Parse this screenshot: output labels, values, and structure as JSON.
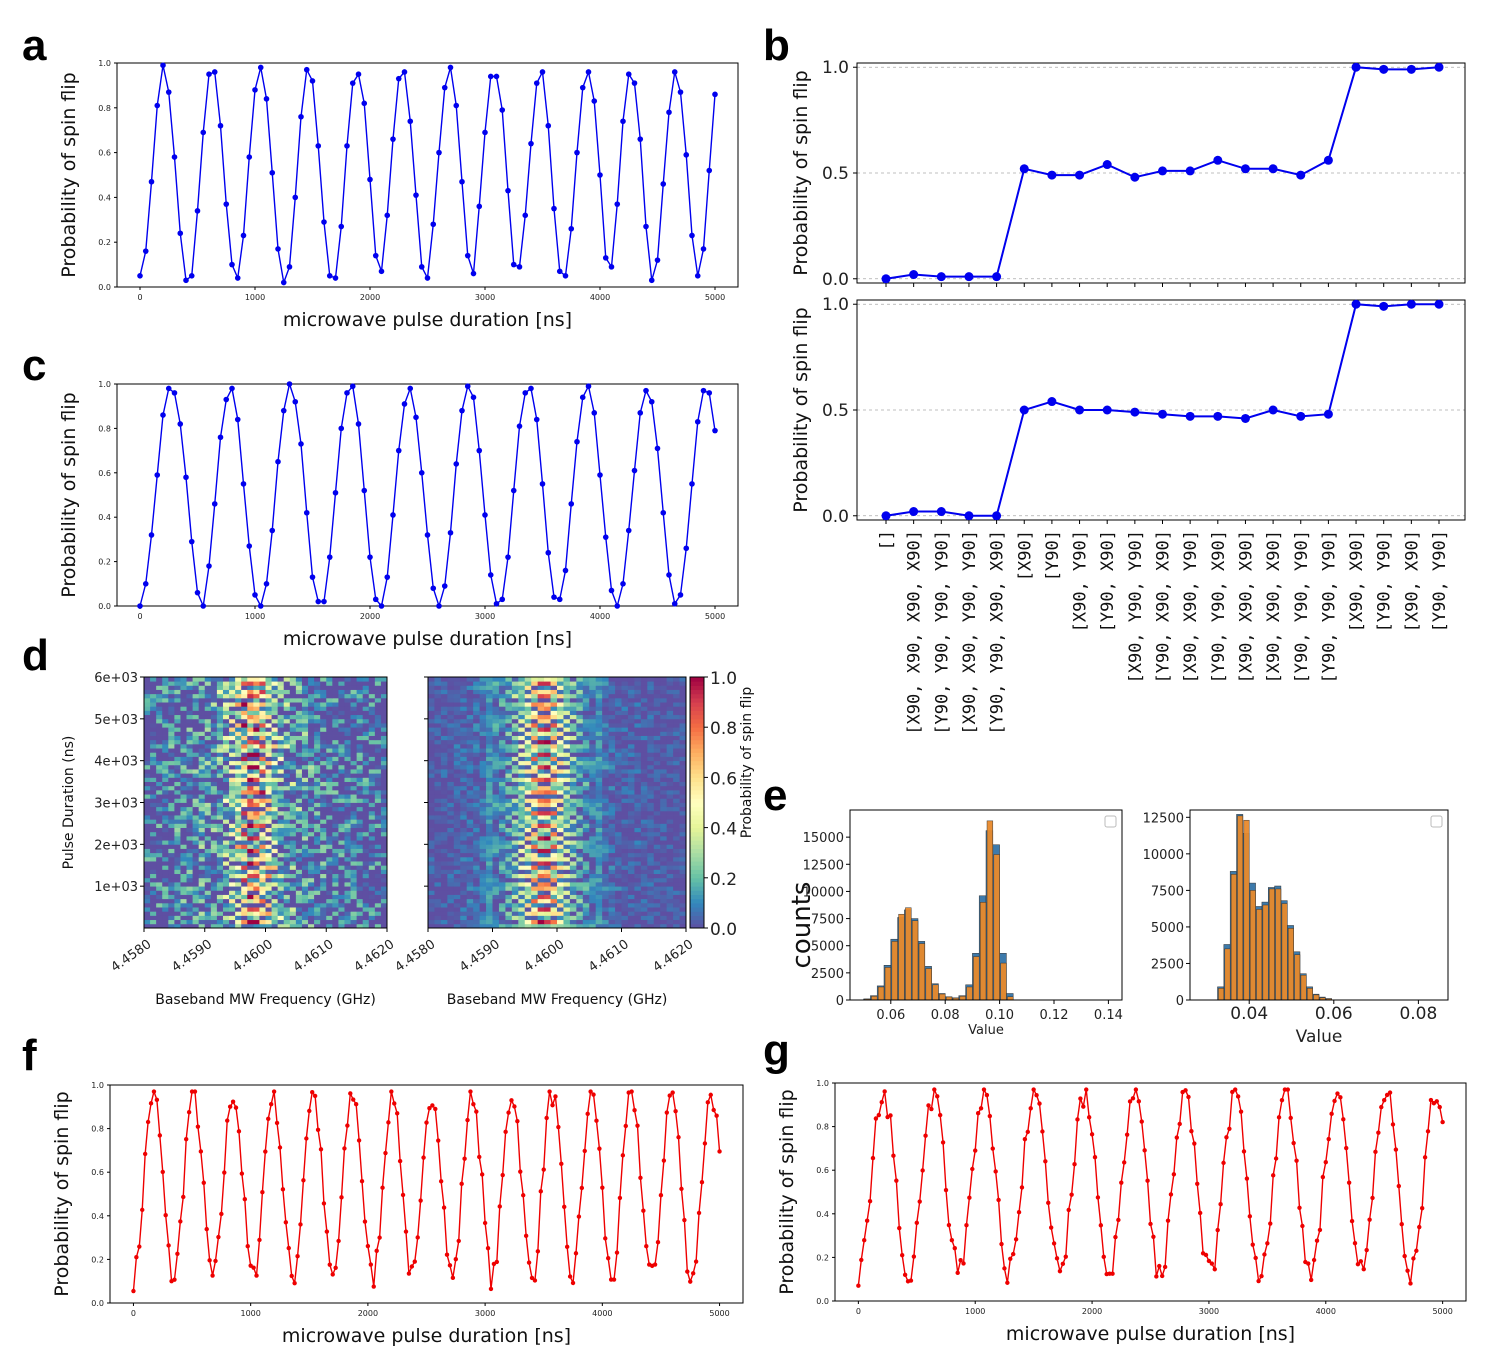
{
  "panel_letters": {
    "a": "a",
    "b": "b",
    "c": "c",
    "d": "d",
    "e": "e",
    "f": "f",
    "g": "g"
  },
  "colors": {
    "blue": "#0000ee",
    "red": "#ee0000",
    "hist_blue": "#3d7aab",
    "hist_orange": "#e88a2c"
  },
  "chart_data": [
    {
      "id": "a",
      "type": "line",
      "xlabel": "microwave pulse duration [ns]",
      "ylabel": "Probability of spin flip",
      "xlim": [
        -200,
        5200
      ],
      "ylim": [
        0,
        1
      ],
      "xticks": [
        "0",
        "1000",
        "2000",
        "3000",
        "4000",
        "5000"
      ],
      "yticks": [
        "0.0",
        "0.2",
        "0.4",
        "0.6",
        "0.8",
        "1.0"
      ],
      "series": [
        {
          "color": "blue",
          "x_start": 0,
          "x_step": 50,
          "values": [
            0.05,
            0.16,
            0.47,
            0.81,
            0.99,
            0.87,
            0.58,
            0.24,
            0.03,
            0.05,
            0.34,
            0.69,
            0.95,
            0.96,
            0.72,
            0.37,
            0.1,
            0.04,
            0.23,
            0.58,
            0.88,
            0.98,
            0.84,
            0.51,
            0.17,
            0.02,
            0.09,
            0.4,
            0.76,
            0.97,
            0.92,
            0.63,
            0.29,
            0.05,
            0.04,
            0.27,
            0.63,
            0.91,
            0.95,
            0.82,
            0.48,
            0.14,
            0.07,
            0.32,
            0.66,
            0.93,
            0.96,
            0.74,
            0.41,
            0.09,
            0.04,
            0.28,
            0.6,
            0.89,
            0.98,
            0.81,
            0.47,
            0.14,
            0.06,
            0.36,
            0.69,
            0.94,
            0.94,
            0.79,
            0.43,
            0.1,
            0.09,
            0.32,
            0.64,
            0.91,
            0.96,
            0.72,
            0.35,
            0.07,
            0.05,
            0.26,
            0.6,
            0.89,
            0.96,
            0.83,
            0.5,
            0.13,
            0.09,
            0.37,
            0.74,
            0.95,
            0.91,
            0.66,
            0.27,
            0.03,
            0.12,
            0.46,
            0.78,
            0.96,
            0.87,
            0.59,
            0.23,
            0.05,
            0.17,
            0.52,
            0.86
          ]
        }
      ]
    },
    {
      "id": "c",
      "type": "line",
      "xlabel": "microwave pulse duration [ns]",
      "ylabel": "Probability of spin flip",
      "xlim": [
        -200,
        5200
      ],
      "ylim": [
        0,
        1
      ],
      "xticks": [
        "0",
        "1000",
        "2000",
        "3000",
        "4000",
        "5000"
      ],
      "yticks": [
        "0.0",
        "0.2",
        "0.4",
        "0.6",
        "0.8",
        "1.0"
      ],
      "series": [
        {
          "color": "blue",
          "x_start": 0,
          "x_step": 50,
          "values": [
            0.0,
            0.1,
            0.32,
            0.59,
            0.86,
            0.98,
            0.96,
            0.82,
            0.58,
            0.29,
            0.06,
            0.0,
            0.18,
            0.46,
            0.76,
            0.93,
            0.98,
            0.84,
            0.55,
            0.27,
            0.05,
            0.0,
            0.1,
            0.34,
            0.65,
            0.88,
            1.0,
            0.92,
            0.73,
            0.42,
            0.13,
            0.02,
            0.02,
            0.22,
            0.51,
            0.8,
            0.96,
            0.99,
            0.82,
            0.52,
            0.22,
            0.03,
            0.0,
            0.13,
            0.41,
            0.7,
            0.91,
            0.98,
            0.85,
            0.6,
            0.32,
            0.08,
            0.0,
            0.09,
            0.33,
            0.64,
            0.88,
            0.99,
            0.94,
            0.7,
            0.41,
            0.14,
            0.01,
            0.03,
            0.22,
            0.52,
            0.81,
            0.96,
            0.98,
            0.84,
            0.55,
            0.24,
            0.04,
            0.03,
            0.16,
            0.46,
            0.74,
            0.94,
            0.99,
            0.87,
            0.59,
            0.31,
            0.07,
            0.0,
            0.1,
            0.34,
            0.61,
            0.87,
            0.97,
            0.92,
            0.71,
            0.42,
            0.14,
            0.01,
            0.05,
            0.26,
            0.55,
            0.83,
            0.97,
            0.96,
            0.79
          ]
        }
      ]
    },
    {
      "id": "b_top",
      "type": "line",
      "ylabel": "Probability of spin flip",
      "ylim": [
        -0.02,
        1.02
      ],
      "yticks": [
        "0.0",
        "0.5",
        "1.0"
      ],
      "grid": "horizontal dashed",
      "series": [
        {
          "color": "blue",
          "values": [
            0.0,
            0.02,
            0.01,
            0.01,
            0.01,
            0.52,
            0.49,
            0.49,
            0.54,
            0.48,
            0.51,
            0.51,
            0.56,
            0.52,
            0.52,
            0.49,
            0.56,
            1.0,
            0.99,
            0.99,
            1.0
          ]
        }
      ]
    },
    {
      "id": "b_bottom",
      "type": "line",
      "ylabel": "Probability of spin flip",
      "ylim": [
        -0.02,
        1.02
      ],
      "yticks": [
        "0.0",
        "0.5",
        "1.0"
      ],
      "grid": "horizontal dashed",
      "categories": [
        "[]",
        "[X90, X90, X90, X90]",
        "[Y90, Y90, Y90, Y90]",
        "[X90, X90, Y90, Y90]",
        "[Y90, Y90, X90, X90]",
        "[X90]",
        "[Y90]",
        "[X90, Y90]",
        "[Y90, X90]",
        "[X90, Y90, Y90]",
        "[Y90, X90, X90]",
        "[X90, X90, Y90]",
        "[Y90, Y90, X90]",
        "[X90, X90, X90]",
        "[X90, X90, X90]",
        "[Y90, Y90, Y90]",
        "[Y90, Y90, Y90]",
        "[X90, X90]",
        "[Y90, Y90]",
        "[X90, X90]",
        "[Y90, Y90]"
      ],
      "series": [
        {
          "color": "blue",
          "values": [
            0.0,
            0.02,
            0.02,
            0.0,
            0.0,
            0.5,
            0.54,
            0.5,
            0.5,
            0.49,
            0.48,
            0.47,
            0.47,
            0.46,
            0.5,
            0.47,
            0.48,
            1.0,
            0.99,
            1.0,
            1.0
          ]
        }
      ]
    },
    {
      "id": "d_left",
      "type": "heatmap",
      "xlabel": "Baseband MW Frequency (GHz)",
      "ylabel": "Pulse Duration (ns)",
      "xlim": [
        4.458,
        4.462
      ],
      "ylim": [
        0,
        6000
      ],
      "xticks": [
        "4.4580",
        "4.4590",
        "4.4600",
        "4.4610",
        "4.4620"
      ],
      "yticks": [
        "1e+03",
        "2e+03",
        "3e+03",
        "4e+03",
        "5e+03",
        "6e+03"
      ],
      "colormap": "Spectral_r",
      "noise": "high"
    },
    {
      "id": "d_right",
      "type": "heatmap",
      "xlabel": "Baseband MW Frequency (GHz)",
      "xlim": [
        4.458,
        4.462
      ],
      "ylim": [
        0,
        6000
      ],
      "xticks": [
        "4.4580",
        "4.4590",
        "4.4600",
        "4.4610",
        "4.4620"
      ],
      "colormap": "Spectral_r",
      "noise": "low",
      "colorbar": {
        "label": "Probability of spin flip",
        "ticks": [
          "0.0",
          "0.2",
          "0.4",
          "0.6",
          "0.8",
          "1.0"
        ]
      }
    },
    {
      "id": "e_left",
      "type": "bar",
      "xlabel": "Value",
      "ylabel": "counts",
      "xlim": [
        0.045,
        0.145
      ],
      "ylim": [
        0,
        17500
      ],
      "xticks": [
        "0.06",
        "0.08",
        "0.10",
        "0.12",
        "0.14"
      ],
      "yticks": [
        "0",
        "2500",
        "5000",
        "7500",
        "10000",
        "12500",
        "15000"
      ],
      "bin_start": 0.05,
      "bin_width": 0.0025,
      "series": [
        {
          "color": "hist_blue",
          "values": [
            100,
            400,
            1300,
            3200,
            5600,
            7600,
            8300,
            7500,
            5400,
            3100,
            1500,
            600,
            300,
            200,
            400,
            1400,
            4300,
            9600,
            15600,
            14300,
            4300,
            600
          ]
        },
        {
          "color": "hist_orange",
          "values": [
            90,
            350,
            1200,
            3000,
            5400,
            7900,
            8500,
            7300,
            5200,
            2900,
            1400,
            550,
            280,
            180,
            350,
            1200,
            4000,
            9000,
            16500,
            13400,
            3400,
            300
          ]
        }
      ]
    },
    {
      "id": "e_right",
      "type": "bar",
      "xlabel": "Value",
      "xlim": [
        0.026,
        0.087
      ],
      "ylim": [
        0,
        13000
      ],
      "xticks": [
        "0.04",
        "0.06",
        "0.08"
      ],
      "yticks": [
        "0",
        "2500",
        "5000",
        "7500",
        "10000",
        "12500"
      ],
      "bin_start": 0.0325,
      "bin_width": 0.0015,
      "series": [
        {
          "color": "hist_blue",
          "values": [
            900,
            3800,
            8800,
            12700,
            11400,
            8000,
            6400,
            6700,
            7700,
            7800,
            6800,
            5100,
            3300,
            1800,
            900,
            400,
            200,
            100
          ]
        },
        {
          "color": "hist_orange",
          "values": [
            800,
            3500,
            8600,
            12600,
            12300,
            7500,
            6200,
            6500,
            7600,
            7600,
            6600,
            4900,
            3100,
            1700,
            800,
            350,
            150,
            80
          ]
        }
      ]
    },
    {
      "id": "f",
      "type": "line",
      "xlabel": "microwave pulse duration [ns]",
      "ylabel": "Probability of spin flip",
      "xlim": [
        -200,
        5200
      ],
      "ylim": [
        0,
        1
      ],
      "xticks": [
        "0",
        "1000",
        "2000",
        "3000",
        "4000",
        "5000"
      ],
      "yticks": [
        "0.0",
        "0.2",
        "0.4",
        "0.6",
        "0.8",
        "1.0"
      ],
      "series": [
        {
          "color": "red",
          "x_start": 0,
          "x_step": 25,
          "period": 340,
          "amplitude": 0.85,
          "noise": 0.06,
          "seed": 7
        }
      ]
    },
    {
      "id": "g",
      "type": "line",
      "xlabel": "microwave pulse duration [ns]",
      "ylabel": "Probability of spin flip",
      "xlim": [
        -200,
        5200
      ],
      "ylim": [
        0,
        1
      ],
      "xticks": [
        "0",
        "1000",
        "2000",
        "3000",
        "4000",
        "5000"
      ],
      "yticks": [
        "0.0",
        "0.2",
        "0.4",
        "0.6",
        "0.8",
        "1.0"
      ],
      "series": [
        {
          "color": "red",
          "x_start": 0,
          "x_step": 25,
          "period": 430,
          "amplitude": 0.82,
          "noise": 0.06,
          "seed": 21
        }
      ]
    }
  ]
}
